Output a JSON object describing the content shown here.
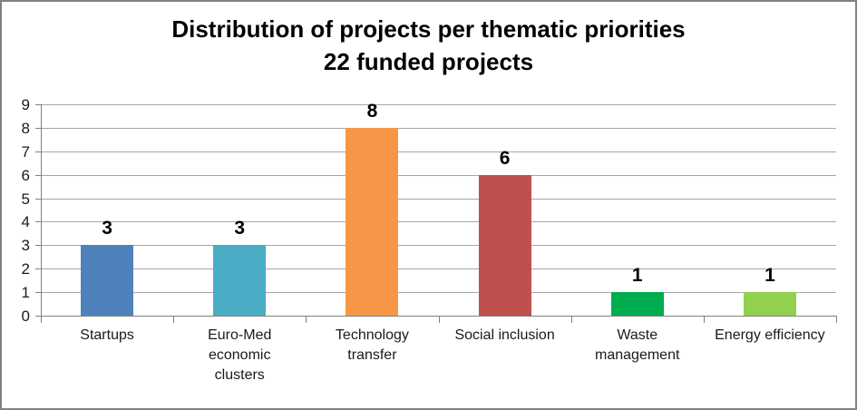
{
  "title": {
    "line1": "Distribution of projects per thematic priorities",
    "line2": "22 funded projects"
  },
  "chart_data": {
    "type": "bar",
    "title": "Distribution of projects per thematic priorities",
    "subtitle": "22 funded projects",
    "categories": [
      "Startups",
      "Euro-Med economic clusters",
      "Technology transfer",
      "Social inclusion",
      "Waste management",
      "Energy efficiency"
    ],
    "values": [
      3,
      3,
      8,
      6,
      1,
      1
    ],
    "data_labels": [
      "3",
      "3",
      "8",
      "6",
      "1",
      "1"
    ],
    "x_label_lines": [
      [
        "Startups"
      ],
      [
        "Euro-Med",
        "economic",
        "clusters"
      ],
      [
        "Technology",
        "transfer"
      ],
      [
        "Social inclusion"
      ],
      [
        "Waste",
        "management"
      ],
      [
        "Energy efficiency"
      ]
    ],
    "bar_colors": [
      "#4F81BD",
      "#4BACC6",
      "#F79646",
      "#C0504D",
      "#00AC50",
      "#92D050"
    ],
    "xlabel": "",
    "ylabel": "",
    "ylim": [
      0,
      9
    ],
    "yticks": [
      0,
      1,
      2,
      3,
      4,
      5,
      6,
      7,
      8,
      9
    ],
    "grid": "horizontal",
    "legend": "none"
  },
  "colors": {
    "background": "#FFFFFF",
    "border": "#808080",
    "axis": "#808080",
    "gridline": "#A6A6A6",
    "text": "#000000"
  }
}
